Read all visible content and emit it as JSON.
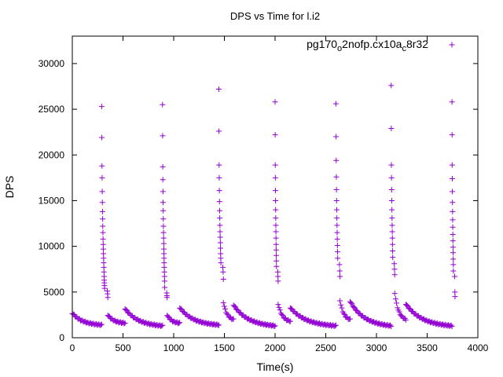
{
  "chart_data": {
    "type": "scatter",
    "title": "DPS vs Time for l.i2",
    "xlabel": "Time(s)",
    "ylabel": "DPS",
    "xlim": [
      0,
      4000
    ],
    "ylim": [
      0,
      33000
    ],
    "xticks": [
      0,
      500,
      1000,
      1500,
      2000,
      2500,
      3000,
      3500,
      4000
    ],
    "yticks": [
      0,
      5000,
      10000,
      15000,
      20000,
      25000,
      30000
    ],
    "grid": false,
    "legend_position": "top-right",
    "marker": "plus",
    "color": "#9400d3",
    "series": [
      {
        "name_parts": [
          "pg170",
          "o",
          "2nofp.cx10a",
          "c",
          "8r32"
        ],
        "name_display": "pg170o2nofp.cx10ac8r32",
        "bursts": [
          {
            "x_start": 290,
            "x_end": 350,
            "peaks": [
              25300,
              21900,
              18800,
              17500,
              16000,
              14800,
              13800,
              13000,
              12200,
              11500,
              10800,
              10200,
              9700,
              9200,
              8700,
              8200,
              7700,
              7200,
              6700,
              6300,
              6000,
              5700,
              5400,
              5100,
              4800,
              4400
            ]
          },
          {
            "x_start": 890,
            "x_end": 935,
            "peaks": [
              25500,
              22100,
              18700,
              17300,
              16000,
              14800,
              13900,
              13000,
              12200,
              11500,
              10900,
              10300,
              9700,
              9200,
              8700,
              8200,
              7700,
              7200,
              6700,
              6200,
              5500,
              4900,
              4600,
              4400
            ]
          },
          {
            "x_start": 1445,
            "x_end": 1490,
            "peaks": [
              27200,
              22600,
              18900,
              17500,
              16100,
              14900,
              13900,
              13100,
              12300,
              11600,
              11000,
              10400,
              9800,
              9200,
              8700,
              8200,
              7700,
              7200,
              6400
            ]
          },
          {
            "x_start": 2000,
            "x_end": 2030,
            "peaks": [
              25800,
              22200,
              18900,
              17500,
              16100,
              15000,
              14000,
              13100,
              12300,
              11600,
              10900,
              10200,
              9600,
              9000,
              8400,
              7800,
              7200,
              6700,
              6200
            ]
          },
          {
            "x_start": 2600,
            "x_end": 2640,
            "peaks": [
              25600,
              22000,
              19400,
              17600,
              16200,
              15000,
              14000,
              13100,
              12300,
              11500,
              10800,
              10100,
              9400,
              8700,
              8000,
              7300,
              6700
            ]
          },
          {
            "x_start": 3145,
            "x_end": 3180,
            "peaks": [
              27600,
              22900,
              18900,
              17500,
              16200,
              15000,
              14000,
              13100,
              12300,
              11600,
              10900,
              10200,
              9500,
              8800,
              8100,
              7500,
              6900
            ]
          },
          {
            "x_start": 3745,
            "x_end": 3775,
            "peaks": [
              25800,
              22200,
              18900,
              17400,
              16000,
              14800,
              13800,
              12900,
              12100,
              11300,
              10600,
              9900,
              9300,
              8600,
              8000,
              7300,
              6700,
              5000,
              4500
            ]
          }
        ],
        "decays": [
          {
            "x_start": 0,
            "x_end": 290,
            "y_start": 2700,
            "y_end": 1400
          },
          {
            "x_start": 350,
            "x_end": 520,
            "y_start": 2500,
            "y_end": 1600
          },
          {
            "x_start": 520,
            "x_end": 890,
            "y_start": 3200,
            "y_end": 1300
          },
          {
            "x_start": 935,
            "x_end": 1060,
            "y_start": 2500,
            "y_end": 1600
          },
          {
            "x_start": 1060,
            "x_end": 1445,
            "y_start": 3300,
            "y_end": 1400
          },
          {
            "x_start": 1490,
            "x_end": 1590,
            "y_start": 3900,
            "y_end": 2000
          },
          {
            "x_start": 1590,
            "x_end": 2000,
            "y_start": 3600,
            "y_end": 1300
          },
          {
            "x_start": 2030,
            "x_end": 2150,
            "y_start": 3700,
            "y_end": 1800
          },
          {
            "x_start": 2150,
            "x_end": 2600,
            "y_start": 3300,
            "y_end": 1300
          },
          {
            "x_start": 2640,
            "x_end": 2740,
            "y_start": 4100,
            "y_end": 2000
          },
          {
            "x_start": 2740,
            "x_end": 3145,
            "y_start": 4000,
            "y_end": 1300
          },
          {
            "x_start": 3180,
            "x_end": 3290,
            "y_start": 4900,
            "y_end": 2000
          },
          {
            "x_start": 3290,
            "x_end": 3745,
            "y_start": 3700,
            "y_end": 1300
          }
        ]
      }
    ]
  }
}
